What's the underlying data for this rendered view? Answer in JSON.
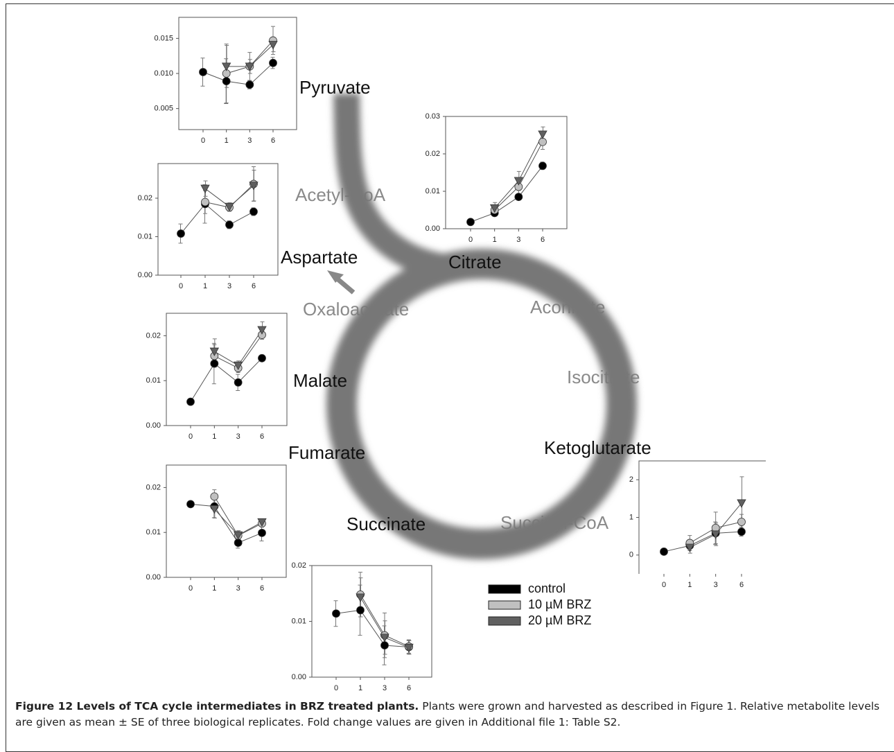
{
  "diagram": {
    "labels": [
      "Pyruvate",
      "Acetyl-CoA",
      "Aspartate",
      "Citrate",
      "Oxaloacetate",
      "Aconitate",
      "Malate",
      "Isocitrate",
      "Fumarate",
      "Ketoglutarate",
      "Succinate",
      "Succinyl-CoA"
    ]
  },
  "caption": {
    "label": "Figure 12 Levels of TCA cycle intermediates in BRZ treated plants.",
    "text": "Plants were grown and harvested as described in Figure 1. Relative metabolite levels are given as mean ± SE of three biological replicates. Fold change values are given in Additional file 1: Table S2."
  },
  "chart_data": [
    {
      "type": "line",
      "categories": [
        "0",
        "1",
        "3",
        "6"
      ],
      "ylim": [
        0.002,
        0.018
      ],
      "yticks": [
        {
          "value": 0.005,
          "label": "0.005"
        },
        {
          "value": 0.01,
          "label": "0.010"
        },
        {
          "value": 0.015,
          "label": "0.015"
        }
      ],
      "series": [
        {
          "name": "control",
          "color": "#000000",
          "values": [
            0.0102,
            0.0089,
            0.0084,
            0.0115
          ],
          "errors": [
            0.002,
            0.0032,
            0.0006,
            0.0008
          ]
        },
        {
          "name": "10 µM BRZ",
          "color": "#c0c0c0",
          "values": [
            null,
            0.01,
            0.011,
            0.0147
          ],
          "errors": [
            null,
            0.0042,
            0.002,
            0.002
          ]
        },
        {
          "name": "20 µM BRZ",
          "color": "#606060",
          "values": [
            null,
            0.011,
            0.011,
            0.0141
          ],
          "errors": [
            null,
            0.003,
            0.001,
            0.001
          ]
        }
      ]
    },
    {
      "type": "line",
      "categories": [
        "0",
        "1",
        "3",
        "6"
      ],
      "ylim": [
        0,
        0.03
      ],
      "yticks": [
        {
          "value": 0,
          "label": "0.00"
        },
        0.01,
        0.02,
        0.03
      ],
      "series": [
        {
          "name": "control",
          "color": "#000000",
          "values": [
            0.0018,
            0.0042,
            0.0085,
            0.0168
          ],
          "errors": [
            0.0003,
            0.0005,
            0.0005,
            0.001
          ]
        },
        {
          "name": "10 µM BRZ",
          "color": "#c0c0c0",
          "values": [
            null,
            0.005,
            0.0112,
            0.0232
          ],
          "errors": [
            null,
            0.001,
            0.002,
            0.002
          ]
        },
        {
          "name": "20 µM BRZ",
          "color": "#606060",
          "values": [
            null,
            0.0055,
            0.0128,
            0.0252
          ],
          "errors": [
            null,
            0.0015,
            0.0025,
            0.002
          ]
        }
      ]
    },
    {
      "type": "line",
      "categories": [
        "0",
        "1",
        "3",
        "6"
      ],
      "ylim": [
        0,
        0.029
      ],
      "yticks": [
        {
          "value": 0,
          "label": "0.00"
        },
        0.01,
        0.02
      ],
      "series": [
        {
          "name": "control",
          "color": "#000000",
          "values": [
            0.0108,
            0.0185,
            0.0131,
            0.0165
          ],
          "errors": [
            0.0025,
            0.005,
            0.001,
            0.001
          ]
        },
        {
          "name": "10 µM BRZ",
          "color": "#c0c0c0",
          "values": [
            null,
            0.019,
            0.0176,
            0.0237
          ],
          "errors": [
            null,
            0.003,
            0.001,
            0.0045
          ]
        },
        {
          "name": "20 µM BRZ",
          "color": "#606060",
          "values": [
            null,
            0.0225,
            0.0178,
            0.0233
          ],
          "errors": [
            null,
            0.002,
            0.001,
            0.004
          ]
        }
      ]
    },
    {
      "type": "line",
      "categories": [
        "0",
        "1",
        "3",
        "6"
      ],
      "ylim": [
        0,
        0.025
      ],
      "yticks": [
        {
          "value": 0,
          "label": "0.00"
        },
        0.01,
        0.02
      ],
      "series": [
        {
          "name": "control",
          "color": "#000000",
          "values": [
            0.0053,
            0.0138,
            0.0096,
            0.015
          ],
          "errors": [
            0,
            0.0045,
            0.0018,
            0
          ]
        },
        {
          "name": "10 µM BRZ",
          "color": "#c0c0c0",
          "values": [
            null,
            0.0155,
            0.0128,
            0.0202
          ],
          "errors": [
            null,
            0.0025,
            0.001,
            0.001
          ]
        },
        {
          "name": "20 µM BRZ",
          "color": "#606060",
          "values": [
            null,
            0.0165,
            0.0134,
            0.0213
          ],
          "errors": [
            null,
            0.0028,
            0.001,
            0.0018
          ]
        }
      ]
    },
    {
      "type": "line",
      "categories": [
        "0",
        "1",
        "3",
        "6"
      ],
      "ylim": [
        0,
        0.025
      ],
      "yticks": [
        {
          "value": 0,
          "label": "0.00"
        },
        0.01,
        0.02
      ],
      "series": [
        {
          "name": "control",
          "color": "#000000",
          "values": [
            0.0163,
            0.0158,
            0.0077,
            0.0099
          ],
          "errors": [
            0,
            0.0025,
            0.0012,
            0.0018
          ]
        },
        {
          "name": "10 µM BRZ",
          "color": "#c0c0c0",
          "values": [
            null,
            0.018,
            0.0093,
            0.012
          ],
          "errors": [
            null,
            0.0015,
            0.001,
            0.0008
          ]
        },
        {
          "name": "20 µM BRZ",
          "color": "#606060",
          "values": [
            null,
            0.0152,
            0.0094,
            0.0123
          ],
          "errors": [
            null,
            0.002,
            0.001,
            0.0007
          ]
        }
      ]
    },
    {
      "type": "line",
      "categories": [
        "0",
        "1",
        "3",
        "6"
      ],
      "ylim": [
        0,
        0.02
      ],
      "yticks": [
        {
          "value": 0,
          "label": "0.00"
        },
        0.01,
        0.02
      ],
      "series": [
        {
          "name": "control",
          "color": "#000000",
          "values": [
            0.0114,
            0.012,
            0.0057,
            0.0054
          ],
          "errors": [
            0.0023,
            0.0045,
            0.0035,
            0.0012
          ]
        },
        {
          "name": "10 µM BRZ",
          "color": "#c0c0c0",
          "values": [
            null,
            0.0148,
            0.0075,
            0.0055
          ],
          "errors": [
            null,
            0.004,
            0.004,
            0.0012
          ]
        },
        {
          "name": "20 µM BRZ",
          "color": "#606060",
          "values": [
            null,
            0.0143,
            0.0071,
            0.0053
          ],
          "errors": [
            null,
            0.0035,
            0.003,
            0.0012
          ]
        }
      ]
    },
    {
      "type": "line",
      "categories": [
        "0",
        "1",
        "3",
        "6"
      ],
      "ylim": [
        -0.5,
        2.5
      ],
      "yticks": [
        0,
        1,
        2
      ],
      "series": [
        {
          "name": "control",
          "color": "#000000",
          "values": [
            0.09,
            0.25,
            0.58,
            0.62
          ],
          "errors": [
            0,
            0.1,
            0.3,
            0.12
          ]
        },
        {
          "name": "10 µM BRZ",
          "color": "#c0c0c0",
          "values": [
            null,
            0.32,
            0.72,
            0.88
          ],
          "errors": [
            null,
            0.2,
            0.42,
            0.2
          ]
        },
        {
          "name": "20 µM BRZ",
          "color": "#606060",
          "values": [
            null,
            0.2,
            0.55,
            1.38
          ],
          "errors": [
            null,
            0.15,
            0.3,
            0.7
          ]
        }
      ]
    }
  ]
}
